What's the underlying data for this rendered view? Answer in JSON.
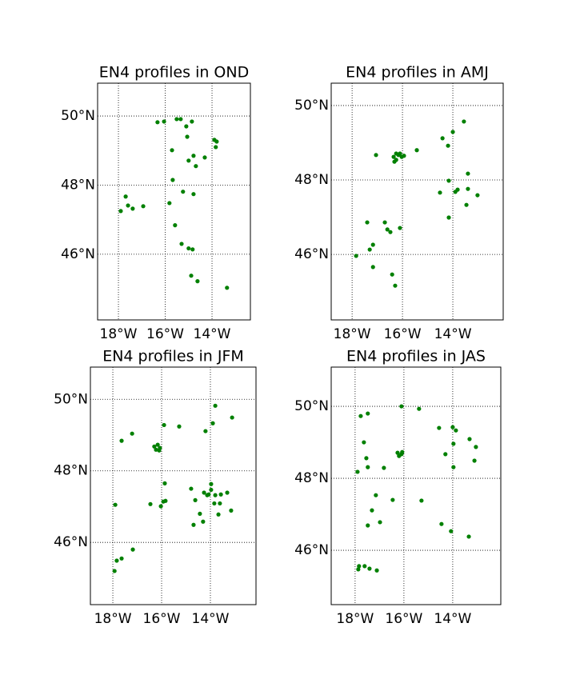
{
  "chart_data": [
    {
      "type": "scatter",
      "title": "EN4 profiles in OND",
      "color": "#008000",
      "grid": true,
      "xlim": [
        -18.89,
        -12.36
      ],
      "ylim": [
        44.1,
        50.95
      ],
      "xticks": [
        {
          "value": -18,
          "label": "18°W"
        },
        {
          "value": -16,
          "label": "16°W"
        },
        {
          "value": -14,
          "label": "14°W"
        }
      ],
      "yticks": [
        {
          "value": 46,
          "label": "46°N"
        },
        {
          "value": 48,
          "label": "48°N"
        },
        {
          "value": 50,
          "label": "50°N"
        }
      ],
      "x": [
        -16.33,
        -16.05,
        -15.51,
        -15.34,
        -15.1,
        -14.86,
        -15.06,
        -13.9,
        -13.8,
        -13.84,
        -15.71,
        -14.79,
        -15.0,
        -14.69,
        -14.31,
        -15.68,
        -15.24,
        -14.79,
        -17.69,
        -17.9,
        -17.59,
        -17.39,
        -16.94,
        -15.82,
        -15.58,
        -15.3,
        -15.0,
        -14.83,
        -14.89,
        -14.62,
        -13.36
      ],
      "values": [
        49.82,
        49.84,
        49.91,
        49.91,
        49.7,
        49.84,
        49.4,
        49.31,
        49.26,
        49.1,
        49.01,
        48.85,
        48.71,
        48.55,
        48.8,
        48.15,
        47.81,
        47.74,
        47.67,
        47.25,
        47.41,
        47.32,
        47.39,
        47.48,
        46.84,
        46.3,
        46.17,
        46.14,
        45.38,
        45.22,
        45.03
      ]
    },
    {
      "type": "scatter",
      "title": "EN4 profiles in AMJ",
      "color": "#008000",
      "grid": true,
      "xlim": [
        -18.83,
        -12.0
      ],
      "ylim": [
        44.24,
        50.6
      ],
      "xticks": [
        {
          "value": -18,
          "label": "18°W"
        },
        {
          "value": -16,
          "label": "16°W"
        },
        {
          "value": -14,
          "label": "14°W"
        }
      ],
      "yticks": [
        {
          "value": 46,
          "label": "46°N"
        },
        {
          "value": 48,
          "label": "48°N"
        },
        {
          "value": 50,
          "label": "50°N"
        }
      ],
      "x": [
        -17.05,
        -15.43,
        -14.41,
        -14.0,
        -13.56,
        -14.19,
        -13.4,
        -14.16,
        -13.81,
        -13.9,
        -14.51,
        -13.02,
        -13.4,
        -13.46,
        -14.16,
        -17.4,
        -16.7,
        -16.6,
        -16.48,
        -16.1,
        -17.17,
        -17.3,
        -17.84,
        -17.17,
        -16.41,
        -16.29,
        -16.35,
        -16.25,
        -16.16,
        -16.03,
        -15.94,
        -16.25,
        -16.32,
        -16.1
      ],
      "values": [
        48.67,
        48.8,
        49.12,
        49.29,
        49.57,
        48.92,
        48.17,
        47.98,
        47.74,
        47.68,
        47.66,
        47.59,
        47.76,
        47.33,
        46.99,
        46.86,
        46.86,
        46.67,
        46.6,
        46.71,
        46.26,
        46.13,
        45.96,
        45.66,
        45.46,
        45.16,
        48.62,
        48.71,
        48.67,
        48.62,
        48.65,
        48.54,
        48.49,
        48.71
      ]
    },
    {
      "type": "scatter",
      "title": "EN4 profiles in JFM",
      "color": "#008000",
      "grid": true,
      "xlim": [
        -18.92,
        -12.13
      ],
      "ylim": [
        44.26,
        50.9
      ],
      "xticks": [
        {
          "value": -18,
          "label": "18°W"
        },
        {
          "value": -16,
          "label": "16°W"
        },
        {
          "value": -14,
          "label": "14°W"
        }
      ],
      "yticks": [
        {
          "value": 46,
          "label": "46°N"
        },
        {
          "value": 48,
          "label": "48°N"
        },
        {
          "value": 50,
          "label": "50°N"
        }
      ],
      "x": [
        -17.64,
        -17.21,
        -15.9,
        -15.28,
        -14.2,
        -13.8,
        -13.9,
        -13.11,
        -15.87,
        -15.84,
        -15.93,
        -16.46,
        -16.03,
        -17.9,
        -14.79,
        -14.62,
        -13.97,
        -14.26,
        -14.13,
        -14.07,
        -13.97,
        -13.8,
        -13.57,
        -13.31,
        -13.84,
        -13.61,
        -14.43,
        -13.67,
        -13.15,
        -14.69,
        -14.3,
        -17.18,
        -17.64,
        -17.84,
        -17.93,
        -16.3,
        -16.16,
        -16.07,
        -16.23,
        -16.1
      ],
      "values": [
        48.84,
        49.04,
        49.28,
        49.24,
        49.11,
        49.82,
        49.33,
        49.49,
        47.65,
        47.16,
        47.14,
        47.07,
        47.01,
        47.05,
        47.5,
        47.18,
        47.63,
        47.39,
        47.32,
        47.34,
        47.47,
        47.32,
        47.34,
        47.39,
        47.09,
        47.09,
        46.8,
        46.78,
        46.89,
        46.49,
        46.58,
        45.8,
        45.55,
        45.49,
        45.2,
        48.68,
        48.73,
        48.64,
        48.59,
        48.57
      ]
    },
    {
      "type": "scatter",
      "title": "EN4 profiles in JAS",
      "color": "#008000",
      "grid": true,
      "xlim": [
        -18.98,
        -12.03
      ],
      "ylim": [
        44.49,
        51.09
      ],
      "xticks": [
        {
          "value": -18,
          "label": "18°W"
        },
        {
          "value": -16,
          "label": "16°W"
        },
        {
          "value": -14,
          "label": "14°W"
        }
      ],
      "yticks": [
        {
          "value": 46,
          "label": "46°N"
        },
        {
          "value": 48,
          "label": "48°N"
        },
        {
          "value": 50,
          "label": "50°N"
        }
      ],
      "x": [
        -17.77,
        -17.48,
        -16.1,
        -15.38,
        -14.56,
        -14.0,
        -13.87,
        -13.31,
        -13.05,
        -17.64,
        -17.54,
        -17.48,
        -17.9,
        -16.82,
        -14.3,
        -13.97,
        -13.97,
        -13.11,
        -17.15,
        -16.46,
        -15.28,
        -17.31,
        -16.98,
        -17.48,
        -14.46,
        -14.07,
        -13.34,
        -17.84,
        -17.87,
        -17.61,
        -17.41,
        -17.11,
        -16.26,
        -16.1,
        -16.2,
        -16.07
      ],
      "values": [
        49.73,
        49.8,
        50.0,
        49.93,
        49.4,
        49.42,
        49.33,
        49.09,
        48.87,
        49.0,
        48.56,
        48.31,
        48.18,
        48.29,
        48.67,
        48.96,
        48.31,
        48.49,
        47.53,
        47.4,
        47.38,
        47.11,
        46.78,
        46.69,
        46.73,
        46.53,
        46.38,
        45.56,
        45.47,
        45.56,
        45.49,
        45.44,
        48.71,
        48.67,
        48.62,
        48.73
      ]
    }
  ]
}
